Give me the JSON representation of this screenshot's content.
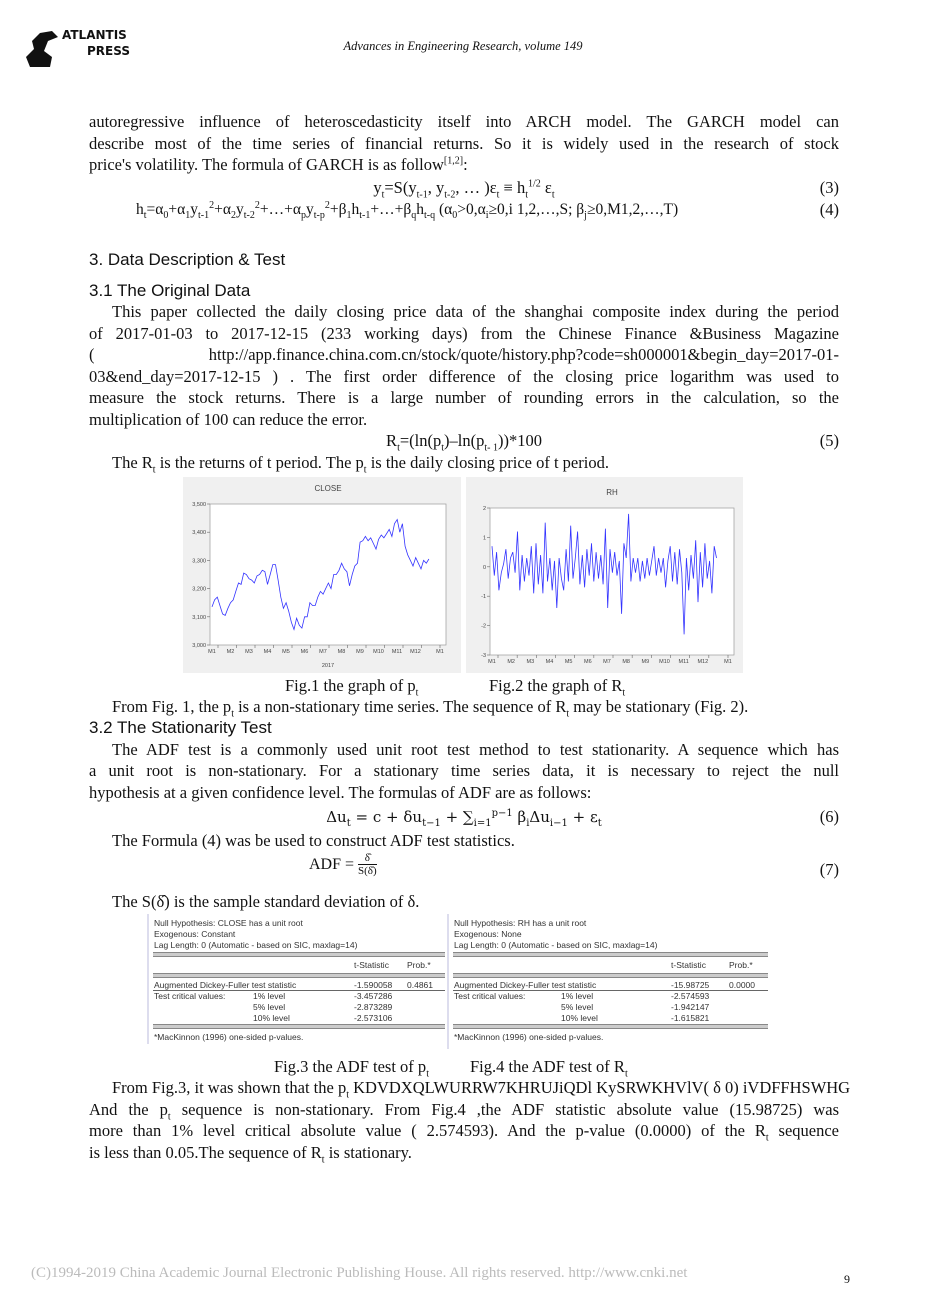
{
  "header": {
    "logo_text": [
      "ATLANTIS",
      "PRESS"
    ],
    "journal": "Advances in Engineering Research, volume 149"
  },
  "para1": [
    "autoregressive influence of heteroscedasticity itself into ARCH model. The GARCH model can",
    "describe most of the time series of financial returns. So it is widely used in the research of  stock",
    "price's volatility. The formula of GARCH is as follow",
    "[1,2]",
    ":"
  ],
  "eq3": {
    "text": "y",
    "num": "(3)"
  },
  "eq4": {
    "num": "(4)"
  },
  "eq5": {
    "num": "(5)"
  },
  "eq6": {
    "num": "(6)"
  },
  "eq7": {
    "num": "(7)"
  },
  "sec3": "3.   Data Description &  Test",
  "sec31": "3.1 The Original Data",
  "para2": [
    "This paper collected the daily closing price data of the shanghai composite index during the period",
    "of 2017-01-03 to 2017-12-15 (233 working days) from the Chinese Finance &Business Magazine",
    "(      http://app.finance.china.com.cn/stock/quote/history.php?code=sh000001&begin_day=2017-01-",
    "03&end_day=2017-12-15 ) . The first order difference of the closing price logarithm was used to",
    "measure the stock returns. There is a large number of rounding errors in the calculation, so the",
    "multiplication of 100 can reduce the error."
  ],
  "para3": "is the returns of  t period. The p",
  "fig_captions": {
    "fig1": "Fig.1 the graph of p",
    "fig2": "Fig.2 the graph of R",
    "fig3": "Fig.3 the ADF test of p",
    "fig4": "Fig.4 the ADF test of  R"
  },
  "para4": "From Fig. 1, the p",
  "sec32": "3.2 The Stationarity Test",
  "para5": [
    "The ADF test is a commonly used unit root test method to test stationarity.  A sequence which has",
    "a unit root is non-stationary. For a stationary time series data, it is necessary to reject the null",
    "hypothesis at a given confidence level. The formulas of ADF are as follows:"
  ],
  "para6": "The Formula (4) was be used to construct ADF test statistics.",
  "para7": "The S(δ̂) is the sample standard deviation of δ.",
  "para8": [
    "From Fig.3, it was shown that the  p",
    "t",
    " KDVDXQLWURRW7KHRUJiQDl KySRWKHVlV( δ  0)  iVDFFHSWHG",
    "And the p",
    "t",
    " sequence is non-stationary. From Fig.4 ,the ADF statistic absolute value (15.98725) was",
    "more than 1% level critical absolute value ( 2.574593). And the  p-value (0.0000) of  the R",
    "t",
    " sequence",
    "is less than 0.05.The sequence of R",
    "t",
    " is stationary."
  ],
  "footer": {
    "copyright": "(C)1994-2019 China Academic Journal Electronic Publishing House. All rights reserved.    http://www.cnki.net",
    "page": "9"
  },
  "adf": [
    {
      "null": "Null Hypothesis: CLOSE has a unit root",
      "exog": "Exogenous: Constant",
      "lag": "Lag Length: 0 (Automatic - based on SIC, maxlag=14)",
      "h_t": "t-Statistic",
      "h_p": "Prob.*",
      "adf_label": "Augmented Dickey-Fuller test statistic",
      "adf_t": "-1.590058",
      "adf_p": "0.4861",
      "crit_label": "Test critical values:",
      "levels": [
        "1% level",
        "5% level",
        "10% level"
      ],
      "crit": [
        "-3.457286",
        "-2.873289",
        "-2.573106"
      ],
      "note": "*MacKinnon (1996) one-sided p-values."
    },
    {
      "null": "Null Hypothesis: RH has a unit root",
      "exog": "Exogenous: None",
      "lag": "Lag Length: 0 (Automatic - based on SIC, maxlag=14)",
      "h_t": "t-Statistic",
      "h_p": "Prob.*",
      "adf_label": "Augmented Dickey-Fuller test statistic",
      "adf_t": "-15.98725",
      "adf_p": "0.0000",
      "crit_label": "Test critical values:",
      "levels": [
        "1% level",
        "5% level",
        "10% level"
      ],
      "crit": [
        "-2.574593",
        "-1.942147",
        "-1.615821"
      ],
      "note": "*MacKinnon (1996) one-sided p-values."
    }
  ],
  "chart_data": [
    {
      "type": "line",
      "title": "CLOSE",
      "xlabel": "2017",
      "x_ticks": [
        "M1",
        "M2",
        "M3",
        "M4",
        "M5",
        "M6",
        "M7",
        "M8",
        "M9",
        "M10",
        "M11",
        "M12",
        "M1"
      ],
      "y_ticks": [
        "3,000",
        "3,100",
        "3,200",
        "3,300",
        "3,400",
        "3,500"
      ],
      "ylim": [
        3000,
        3500
      ],
      "color": "#3333ff",
      "values": [
        3135,
        3160,
        3170,
        3140,
        3110,
        3105,
        3130,
        3150,
        3160,
        3190,
        3220,
        3215,
        3255,
        3250,
        3235,
        3230,
        3220,
        3245,
        3250,
        3265,
        3260,
        3215,
        3250,
        3285,
        3285,
        3230,
        3170,
        3130,
        3150,
        3120,
        3080,
        3055,
        3095,
        3070,
        3060,
        3100,
        3100,
        3150,
        3140,
        3140,
        3170,
        3190,
        3180,
        3200,
        3220,
        3200,
        3250,
        3250,
        3265,
        3290,
        3270,
        3260,
        3210,
        3250,
        3280,
        3290,
        3365,
        3370,
        3385,
        3370,
        3380,
        3360,
        3340,
        3375,
        3390,
        3380,
        3395,
        3410,
        3385,
        3430,
        3445,
        3400,
        3430,
        3350,
        3320,
        3300,
        3280,
        3310,
        3290,
        3270,
        3300,
        3290,
        3305
      ]
    },
    {
      "type": "line",
      "title": "RH",
      "x_ticks": [
        "M1",
        "M2",
        "M3",
        "M4",
        "M5",
        "M6",
        "M7",
        "M8",
        "M9",
        "M10",
        "M11",
        "M12",
        "M1"
      ],
      "y_ticks": [
        "-3",
        "-2",
        "-1",
        "0",
        "1",
        "2"
      ],
      "ylim": [
        -3,
        2
      ],
      "color": "#3333ff",
      "values": [
        0.7,
        -0.3,
        0.5,
        -0.8,
        -0.2,
        0.1,
        0.6,
        -0.4,
        0.3,
        0.5,
        -0.2,
        1.2,
        -0.8,
        0.4,
        -0.5,
        0.3,
        -0.3,
        0.7,
        -0.9,
        0.8,
        -0.6,
        0.4,
        -0.9,
        1.5,
        -0.5,
        0.3,
        -0.8,
        0.2,
        -1.4,
        0.3,
        -0.4,
        -0.8,
        0.6,
        -0.5,
        1.4,
        -0.4,
        0.3,
        1.2,
        -0.6,
        0.4,
        -0.7,
        0.6,
        -0.3,
        0.8,
        -0.5,
        0.5,
        -0.4,
        0.4,
        -0.6,
        1.3,
        -1.4,
        0.6,
        -0.2,
        0.5,
        -0.3,
        0.2,
        -1.6,
        0.8,
        0.3,
        1.8,
        -0.5,
        0.3,
        -0.2,
        0.3,
        -0.5,
        0.2,
        -0.4,
        0.3,
        -0.3,
        0.2,
        0.7,
        -0.3,
        0.3,
        -0.2,
        0.3,
        -0.7,
        0.2,
        0.7,
        -0.5,
        0.5,
        -0.6,
        0.6,
        -0.2,
        -2.3,
        0.3,
        -0.8,
        0.4,
        -0.4,
        0.9,
        -1.2,
        0.5,
        -0.7,
        0.8,
        -0.4,
        0.2,
        -0.9,
        0.7,
        0.3
      ]
    }
  ]
}
